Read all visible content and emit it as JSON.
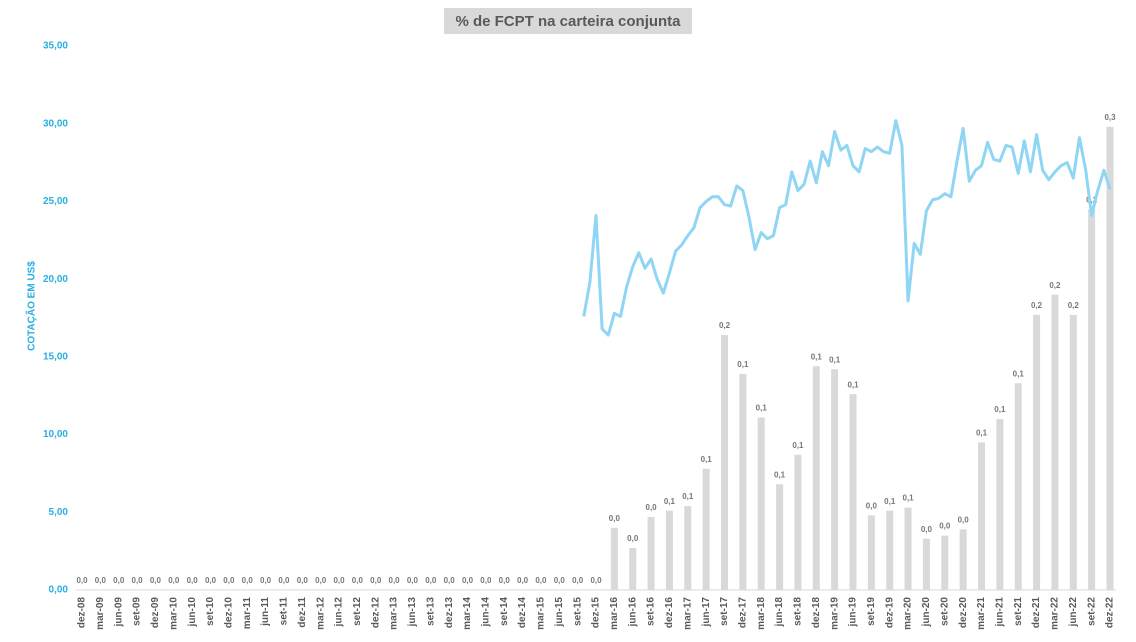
{
  "chart_data": {
    "type": "combo",
    "title": "% de FCPT na carteira conjunta",
    "y_label": "COTAÇÃO EM US$",
    "ylim": [
      0,
      35
    ],
    "y2lim": [
      0,
      0.35
    ],
    "yticks": [
      {
        "value": 0,
        "label": "0,00"
      },
      {
        "value": 5,
        "label": "5,00"
      },
      {
        "value": 10,
        "label": "10,00"
      },
      {
        "value": 15,
        "label": "15,00"
      },
      {
        "value": 20,
        "label": "20,00"
      },
      {
        "value": 25,
        "label": "25,00"
      },
      {
        "value": 30,
        "label": "30,00"
      },
      {
        "value": 35,
        "label": "35,00"
      }
    ],
    "categories": [
      "dez-08",
      null,
      null,
      "mar-09",
      null,
      null,
      "jun-09",
      null,
      null,
      "set-09",
      null,
      null,
      "dez-09",
      null,
      null,
      "mar-10",
      null,
      null,
      "jun-10",
      null,
      null,
      "set-10",
      null,
      null,
      "dez-10",
      null,
      null,
      "mar-11",
      null,
      null,
      "jun-11",
      null,
      null,
      "set-11",
      null,
      null,
      "dez-11",
      null,
      null,
      "mar-12",
      null,
      null,
      "jun-12",
      null,
      null,
      "set-12",
      null,
      null,
      "dez-12",
      null,
      null,
      "mar-13",
      null,
      null,
      "jun-13",
      null,
      null,
      "set-13",
      null,
      null,
      "dez-13",
      null,
      null,
      "mar-14",
      null,
      null,
      "jun-14",
      null,
      null,
      "set-14",
      null,
      null,
      "dez-14",
      null,
      null,
      "mar-15",
      null,
      null,
      "jun-15",
      null,
      null,
      "set-15",
      null,
      null,
      "dez-15",
      null,
      null,
      "mar-16",
      null,
      null,
      "jun-16",
      null,
      null,
      "set-16",
      null,
      null,
      "dez-16",
      null,
      null,
      "mar-17",
      null,
      null,
      "jun-17",
      null,
      null,
      "set-17",
      null,
      null,
      "dez-17",
      null,
      null,
      "mar-18",
      null,
      null,
      "jun-18",
      null,
      null,
      "set-18",
      null,
      null,
      "dez-18",
      null,
      null,
      "mar-19",
      null,
      null,
      "jun-19",
      null,
      null,
      "set-19",
      null,
      null,
      "dez-19",
      null,
      null,
      "mar-20",
      null,
      null,
      "jun-20",
      null,
      null,
      "set-20",
      null,
      null,
      "dez-20",
      null,
      null,
      "mar-21",
      null,
      null,
      "jun-21",
      null,
      null,
      "set-21",
      null,
      null,
      "dez-21",
      null,
      null,
      "mar-22",
      null,
      null,
      "jun-22",
      null,
      null,
      "set-22",
      null,
      null,
      "dez-22"
    ],
    "series": [
      {
        "type": "bar",
        "axis": "y2",
        "color": "#d9d9d9",
        "values": [
          0,
          null,
          null,
          0,
          null,
          null,
          0,
          null,
          null,
          0,
          null,
          null,
          0,
          null,
          null,
          0,
          null,
          null,
          0,
          null,
          null,
          0,
          null,
          null,
          0,
          null,
          null,
          0,
          null,
          null,
          0,
          null,
          null,
          0,
          null,
          null,
          0,
          null,
          null,
          0,
          null,
          null,
          0,
          null,
          null,
          0,
          null,
          null,
          0,
          null,
          null,
          0,
          null,
          null,
          0,
          null,
          null,
          0,
          null,
          null,
          0,
          null,
          null,
          0,
          null,
          null,
          0,
          null,
          null,
          0,
          null,
          null,
          0,
          null,
          null,
          0,
          null,
          null,
          0,
          null,
          null,
          0,
          null,
          null,
          0,
          null,
          null,
          0.04,
          null,
          null,
          0.027,
          null,
          null,
          0.047,
          null,
          null,
          0.051,
          null,
          null,
          0.054,
          null,
          null,
          0.078,
          null,
          null,
          0.164,
          null,
          null,
          0.139,
          null,
          null,
          0.111,
          null,
          null,
          0.068,
          null,
          null,
          0.087,
          null,
          null,
          0.144,
          null,
          null,
          0.142,
          null,
          null,
          0.126,
          null,
          null,
          0.048,
          null,
          null,
          0.051,
          null,
          null,
          0.053,
          null,
          null,
          0.033,
          null,
          null,
          0.035,
          null,
          null,
          0.039,
          null,
          null,
          0.095,
          null,
          null,
          0.11,
          null,
          null,
          0.133,
          null,
          null,
          0.177,
          null,
          null,
          0.19,
          null,
          null,
          0.177,
          null,
          null,
          0.245,
          null,
          null,
          0.298
        ],
        "value_labels": [
          "0,0",
          null,
          null,
          "0,0",
          null,
          null,
          "0,0",
          null,
          null,
          "0,0",
          null,
          null,
          "0,0",
          null,
          null,
          "0,0",
          null,
          null,
          "0,0",
          null,
          null,
          "0,0",
          null,
          null,
          "0,0",
          null,
          null,
          "0,0",
          null,
          null,
          "0,0",
          null,
          null,
          "0,0",
          null,
          null,
          "0,0",
          null,
          null,
          "0,0",
          null,
          null,
          "0,0",
          null,
          null,
          "0,0",
          null,
          null,
          "0,0",
          null,
          null,
          "0,0",
          null,
          null,
          "0,0",
          null,
          null,
          "0,0",
          null,
          null,
          "0,0",
          null,
          null,
          "0,0",
          null,
          null,
          "0,0",
          null,
          null,
          "0,0",
          null,
          null,
          "0,0",
          null,
          null,
          "0,0",
          null,
          null,
          "0,0",
          null,
          null,
          "0,0",
          null,
          null,
          "0,0",
          null,
          null,
          "0,0",
          null,
          null,
          "0,0",
          null,
          null,
          "0,0",
          null,
          null,
          "0,1",
          null,
          null,
          "0,1",
          null,
          null,
          "0,1",
          null,
          null,
          "0,2",
          null,
          null,
          "0,1",
          null,
          null,
          "0,1",
          null,
          null,
          "0,1",
          null,
          null,
          "0,1",
          null,
          null,
          "0,1",
          null,
          null,
          "0,1",
          null,
          null,
          "0,1",
          null,
          null,
          "0,0",
          null,
          null,
          "0,1",
          null,
          null,
          "0,1",
          null,
          null,
          "0,0",
          null,
          null,
          "0,0",
          null,
          null,
          "0,0",
          null,
          null,
          "0,1",
          null,
          null,
          "0,1",
          null,
          null,
          "0,1",
          null,
          null,
          "0,2",
          null,
          null,
          "0,2",
          null,
          null,
          "0,2",
          null,
          null,
          "0,2",
          null,
          null,
          "0,3"
        ]
      },
      {
        "type": "line",
        "color": "#8fd6f4",
        "values": [
          null,
          null,
          null,
          null,
          null,
          null,
          null,
          null,
          null,
          null,
          null,
          null,
          null,
          null,
          null,
          null,
          null,
          null,
          null,
          null,
          null,
          null,
          null,
          null,
          null,
          null,
          null,
          null,
          null,
          null,
          null,
          null,
          null,
          null,
          null,
          null,
          null,
          null,
          null,
          null,
          null,
          null,
          null,
          null,
          null,
          null,
          null,
          null,
          null,
          null,
          null,
          null,
          null,
          null,
          null,
          null,
          null,
          null,
          null,
          null,
          null,
          null,
          null,
          null,
          null,
          null,
          null,
          null,
          null,
          null,
          null,
          null,
          null,
          null,
          null,
          null,
          null,
          null,
          null,
          null,
          null,
          null,
          17.6,
          19.8,
          24.1,
          16.8,
          16.4,
          17.8,
          17.6,
          19.5,
          20.8,
          21.7,
          20.7,
          21.3,
          20.0,
          19.1,
          20.4,
          21.8,
          22.2,
          22.8,
          23.3,
          24.6,
          25.0,
          25.3,
          25.3,
          24.8,
          24.7,
          26.0,
          25.7,
          24.0,
          21.9,
          23.0,
          22.6,
          22.8,
          24.6,
          24.8,
          26.9,
          25.7,
          26.1,
          27.6,
          26.2,
          28.2,
          27.3,
          29.5,
          28.3,
          28.6,
          27.3,
          26.9,
          28.4,
          28.2,
          28.5,
          28.2,
          28.1,
          30.2,
          28.6,
          18.6,
          22.3,
          21.6,
          24.4,
          25.1,
          25.2,
          25.5,
          25.3,
          27.6,
          29.7,
          26.3,
          27.0,
          27.3,
          28.8,
          27.7,
          27.6,
          28.6,
          28.5,
          26.8,
          28.9,
          26.9,
          29.3,
          27.0,
          26.4,
          26.9,
          27.3,
          27.5,
          26.5,
          29.1,
          27.1,
          24.1,
          25.7,
          27.0,
          25.8
        ]
      }
    ]
  }
}
